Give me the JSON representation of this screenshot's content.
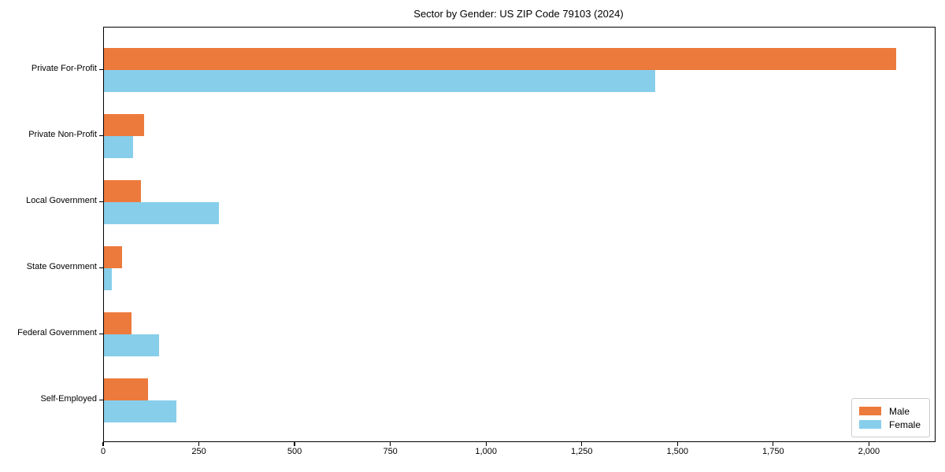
{
  "chart_data": {
    "type": "bar",
    "orientation": "horizontal",
    "title": "Sector by Gender: US ZIP Code 79103 (2024)",
    "categories": [
      "Private For-Profit",
      "Private Non-Profit",
      "Local Government",
      "State Government",
      "Federal Government",
      "Self-Employed"
    ],
    "series": [
      {
        "name": "Male",
        "color": "#ec7a3c",
        "values": [
          2070,
          105,
          97,
          48,
          72,
          116
        ]
      },
      {
        "name": "Female",
        "color": "#87ceeb",
        "values": [
          1440,
          77,
          300,
          21,
          145,
          190
        ]
      }
    ],
    "xlabel": "",
    "ylabel": "",
    "xlim": [
      0,
      2170
    ],
    "x_ticks": [
      0,
      250,
      500,
      750,
      1000,
      1250,
      1500,
      1750,
      2000
    ],
    "x_tick_labels": [
      "0",
      "250",
      "500",
      "750",
      "1,000",
      "1,250",
      "1,500",
      "1,750",
      "2,000"
    ],
    "grid": false,
    "legend_position": "lower right"
  }
}
